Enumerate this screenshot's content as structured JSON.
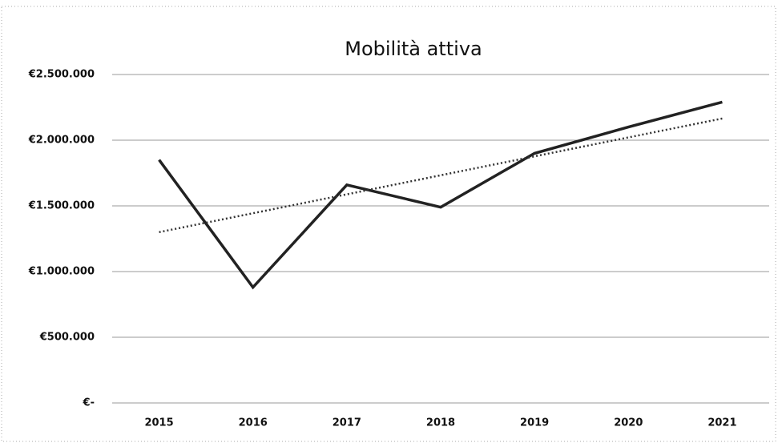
{
  "chart_data": {
    "type": "line",
    "title": "Mobilità attiva",
    "categories": [
      "2015",
      "2016",
      "2017",
      "2018",
      "2019",
      "2020",
      "2021"
    ],
    "series": [
      {
        "color": "#222222",
        "values": [
          1850000,
          880000,
          1660000,
          1490000,
          1900000,
          2100000,
          2290000
        ]
      },
      {
        "color": "#333333",
        "dotted": true,
        "values": [
          1300000,
          1444000,
          1588000,
          1733000,
          1877000,
          2021000,
          2165000
        ]
      }
    ],
    "ylim": [
      0,
      2500000
    ],
    "yticks": [
      {
        "value": 0,
        "label": "€-"
      },
      {
        "value": 500000,
        "label": "€500.000"
      },
      {
        "value": 1000000,
        "label": "€1.000.000"
      },
      {
        "value": 1500000,
        "label": "€1.500.000"
      },
      {
        "value": 2000000,
        "label": "€2.000.000"
      },
      {
        "value": 2500000,
        "label": "€2.500.000"
      }
    ],
    "grid": true
  }
}
